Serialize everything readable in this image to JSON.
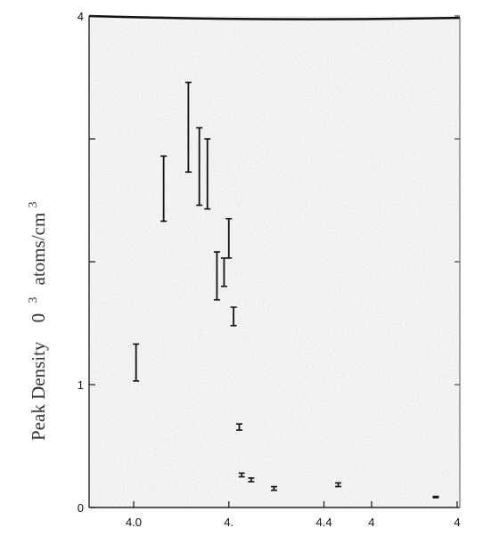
{
  "chart_data": {
    "type": "scatter",
    "title": "",
    "xlabel": "",
    "ylabel": {
      "main": "Peak Density",
      "exp_prefix": "0",
      "exp_sup": "3",
      "unit_main": "atoms/cm",
      "unit_sup": "3"
    },
    "xlim": [
      3.96,
      4.68
    ],
    "ylim": [
      0,
      4
    ],
    "x_ticks": [
      {
        "value": 4.0,
        "label": "4.0"
      },
      {
        "value": 4.2,
        "label": "4."
      },
      {
        "value": 4.4,
        "label": "4.4"
      },
      {
        "value": 4.5,
        "label": "4"
      },
      {
        "value": 4.68,
        "label": "4"
      }
    ],
    "y_ticks": [
      {
        "value": 0,
        "label": "0"
      },
      {
        "value": 1,
        "label": "1"
      },
      {
        "value": 2,
        "label": ""
      },
      {
        "value": 3,
        "label": ""
      },
      {
        "value": 4,
        "label": "4"
      }
    ],
    "grid": false,
    "series": [
      {
        "marker": "errorbar",
        "points": [
          {
            "x": 4.005,
            "y_low": 1.03,
            "y_high": 1.33
          },
          {
            "x": 4.063,
            "y_low": 2.33,
            "y_high": 2.86
          },
          {
            "x": 4.115,
            "y_low": 2.73,
            "y_high": 3.46
          },
          {
            "x": 4.138,
            "y_low": 2.46,
            "y_high": 3.09
          },
          {
            "x": 4.155,
            "y_low": 2.43,
            "y_high": 3.0
          },
          {
            "x": 4.175,
            "y_low": 1.69,
            "y_high": 2.08
          },
          {
            "x": 4.19,
            "y_low": 1.8,
            "y_high": 2.03
          },
          {
            "x": 4.2,
            "y_low": 2.03,
            "y_high": 2.35
          },
          {
            "x": 4.21,
            "y_low": 1.48,
            "y_high": 1.63
          },
          {
            "x": 4.222,
            "y_low": 0.63,
            "y_high": 0.68
          },
          {
            "x": 4.227,
            "y_low": 0.25,
            "y_high": 0.28
          },
          {
            "x": 4.247,
            "y_low": 0.21,
            "y_high": 0.24
          },
          {
            "x": 4.295,
            "y_low": 0.14,
            "y_high": 0.17
          },
          {
            "x": 4.43,
            "y_low": 0.17,
            "y_high": 0.2
          },
          {
            "x": 4.635,
            "y_low": 0.08,
            "y_high": 0.09
          }
        ]
      }
    ]
  }
}
